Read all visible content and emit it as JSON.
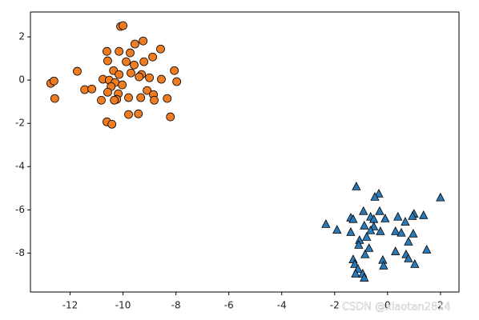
{
  "chart_data": {
    "type": "scatter",
    "xlim": [
      -13.5,
      2.7
    ],
    "ylim": [
      -9.8,
      3.15
    ],
    "xticks": [
      -12,
      -10,
      -8,
      -6,
      -4,
      -2,
      0,
      2
    ],
    "yticks": [
      -8,
      -6,
      -4,
      -2,
      0,
      2
    ],
    "grid": false,
    "watermark": "CSDN @xiaotan2814",
    "series": [
      {
        "color": "#f07c22",
        "marker": "circle",
        "x": [
          -10.09,
          -10.0,
          -9.24,
          -9.55,
          -8.58,
          -10.61,
          -10.15,
          -9.73,
          -10.58,
          -9.88,
          -9.58,
          -9.21,
          -8.88,
          -11.73,
          -10.36,
          -9.7,
          -9.3,
          -8.06,
          -9.39,
          -10.15,
          -9.0,
          -10.76,
          -10.52,
          -12.73,
          -12.61,
          -8.55,
          -7.97,
          -10.3,
          -10.03,
          -10.45,
          -11.45,
          -11.18,
          -10.58,
          -10.18,
          -9.09,
          -8.85,
          -9.33,
          -12.58,
          -10.24,
          -9.79,
          -8.33,
          -8.82,
          -10.82,
          -10.33,
          -9.79,
          -9.42,
          -10.61,
          -10.42,
          -8.21
        ],
        "values": [
          2.48,
          2.52,
          1.81,
          1.67,
          1.44,
          1.33,
          1.33,
          1.26,
          0.89,
          0.85,
          0.7,
          0.85,
          1.07,
          0.41,
          0.44,
          0.33,
          0.26,
          0.44,
          0.15,
          0.26,
          0.11,
          0.04,
          0.0,
          -0.15,
          -0.04,
          0.04,
          -0.07,
          -0.11,
          -0.22,
          -0.3,
          -0.44,
          -0.41,
          -0.56,
          -0.63,
          -0.48,
          -0.67,
          -0.81,
          -0.85,
          -0.89,
          -0.81,
          -0.85,
          -0.93,
          -0.93,
          -0.93,
          -1.59,
          -1.56,
          -1.93,
          -2.04,
          -1.7
        ]
      },
      {
        "color": "#2a7ab8",
        "marker": "triangle",
        "x": [
          -1.18,
          -0.33,
          -0.48,
          2.0,
          -0.91,
          -0.3,
          -1.39,
          -0.64,
          -0.52,
          -0.09,
          0.39,
          1.0,
          0.94,
          1.36,
          -2.33,
          -1.3,
          -0.88,
          -0.52,
          0.67,
          -1.39,
          -1.91,
          -0.64,
          -0.27,
          0.3,
          0.52,
          0.97,
          -1.06,
          -0.79,
          0.79,
          -1.09,
          -0.7,
          0.3,
          1.48,
          0.7,
          -1.3,
          -0.85,
          -0.18,
          0.79,
          1.03,
          -1.24,
          -1.12,
          -0.15,
          -1.21,
          -0.94,
          -0.88
        ],
        "values": [
          -4.93,
          -5.26,
          -5.41,
          -5.44,
          -6.07,
          -6.07,
          -6.37,
          -6.33,
          -6.44,
          -6.41,
          -6.33,
          -6.19,
          -6.3,
          -6.26,
          -6.67,
          -6.44,
          -6.74,
          -6.78,
          -6.56,
          -7.04,
          -6.93,
          -6.96,
          -7.0,
          -7.0,
          -7.07,
          -7.11,
          -7.41,
          -7.26,
          -7.48,
          -7.63,
          -7.78,
          -7.93,
          -7.85,
          -8.07,
          -8.3,
          -8.07,
          -8.33,
          -8.26,
          -8.52,
          -8.52,
          -8.74,
          -8.59,
          -8.96,
          -8.96,
          -9.15
        ]
      }
    ]
  }
}
